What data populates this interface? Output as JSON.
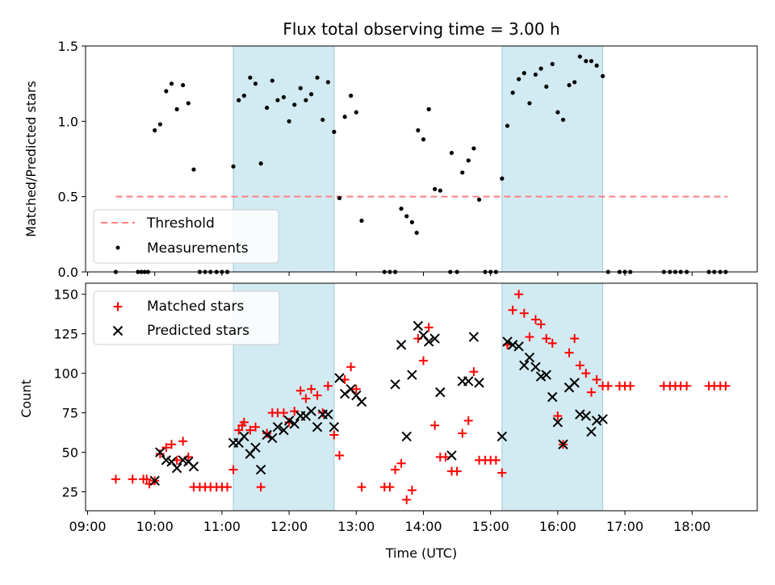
{
  "chart_data": [
    {
      "type": "scatter",
      "title": "Flux total observing time = 3.00 h",
      "xlabel": "",
      "ylabel": "Matched/Predicted stars",
      "xlim": [
        8.97,
        18.97
      ],
      "ylim": [
        0,
        1.5
      ],
      "yticks": [
        0,
        0.5,
        1.0,
        1.5
      ],
      "ytick_labels": [
        "0.0",
        "0.5",
        "1.0",
        "1.5"
      ],
      "shaded_intervals": [
        [
          11.17,
          12.67
        ],
        [
          15.17,
          16.67
        ]
      ],
      "threshold": {
        "value": 0.5,
        "x_start": 9.42,
        "x_end": 18.53,
        "label": "Threshold",
        "color": "#ff7f7f"
      },
      "legend": {
        "position": "lower-left",
        "entries": [
          "Threshold",
          "Measurements"
        ]
      },
      "series": [
        {
          "name": "Measurements",
          "color": "#000000",
          "points": [
            [
              9.42,
              0
            ],
            [
              9.75,
              0
            ],
            [
              9.8,
              0
            ],
            [
              9.85,
              0
            ],
            [
              9.9,
              0
            ],
            [
              10.0,
              0.94
            ],
            [
              10.08,
              0.98
            ],
            [
              10.17,
              1.2
            ],
            [
              10.25,
              1.25
            ],
            [
              10.33,
              1.08
            ],
            [
              10.42,
              1.24
            ],
            [
              10.5,
              1.12
            ],
            [
              10.58,
              0.68
            ],
            [
              10.67,
              0
            ],
            [
              10.75,
              0
            ],
            [
              10.83,
              0
            ],
            [
              10.92,
              0
            ],
            [
              11.0,
              0
            ],
            [
              11.08,
              0
            ],
            [
              11.17,
              0.7
            ],
            [
              11.25,
              1.14
            ],
            [
              11.33,
              1.17
            ],
            [
              11.42,
              1.29
            ],
            [
              11.5,
              1.25
            ],
            [
              11.58,
              0.72
            ],
            [
              11.67,
              1.09
            ],
            [
              11.75,
              1.27
            ],
            [
              11.83,
              1.14
            ],
            [
              11.92,
              1.16
            ],
            [
              12.0,
              1.0
            ],
            [
              12.08,
              1.11
            ],
            [
              12.17,
              1.22
            ],
            [
              12.25,
              1.14
            ],
            [
              12.33,
              1.18
            ],
            [
              12.42,
              1.29
            ],
            [
              12.5,
              1.01
            ],
            [
              12.58,
              1.26
            ],
            [
              12.67,
              0.93
            ],
            [
              12.75,
              0.49
            ],
            [
              12.83,
              1.03
            ],
            [
              12.92,
              1.17
            ],
            [
              13.0,
              1.06
            ],
            [
              13.08,
              0.34
            ],
            [
              13.42,
              0
            ],
            [
              13.5,
              0
            ],
            [
              13.58,
              0
            ],
            [
              13.67,
              0.42
            ],
            [
              13.75,
              0.37
            ],
            [
              13.83,
              0.33
            ],
            [
              13.9,
              0.26
            ],
            [
              13.92,
              0.94
            ],
            [
              14.0,
              0.88
            ],
            [
              14.08,
              1.08
            ],
            [
              14.17,
              0.55
            ],
            [
              14.25,
              0.54
            ],
            [
              14.4,
              0
            ],
            [
              14.42,
              0.79
            ],
            [
              14.5,
              0
            ],
            [
              14.58,
              0.66
            ],
            [
              14.67,
              0.74
            ],
            [
              14.75,
              0.82
            ],
            [
              14.83,
              0.48
            ],
            [
              14.92,
              0
            ],
            [
              15.0,
              0
            ],
            [
              15.08,
              0
            ],
            [
              15.17,
              0.62
            ],
            [
              15.25,
              0.97
            ],
            [
              15.33,
              1.19
            ],
            [
              15.42,
              1.28
            ],
            [
              15.5,
              1.32
            ],
            [
              15.58,
              1.12
            ],
            [
              15.67,
              1.31
            ],
            [
              15.75,
              1.35
            ],
            [
              15.83,
              1.23
            ],
            [
              15.92,
              1.38
            ],
            [
              16.0,
              1.06
            ],
            [
              16.08,
              1.01
            ],
            [
              16.17,
              1.24
            ],
            [
              16.25,
              1.26
            ],
            [
              16.33,
              1.43
            ],
            [
              16.42,
              1.4
            ],
            [
              16.5,
              1.4
            ],
            [
              16.58,
              1.37
            ],
            [
              16.67,
              1.3
            ],
            [
              16.75,
              0
            ],
            [
              16.92,
              0
            ],
            [
              17.0,
              0
            ],
            [
              17.08,
              0
            ],
            [
              17.58,
              0
            ],
            [
              17.67,
              0
            ],
            [
              17.75,
              0
            ],
            [
              17.83,
              0
            ],
            [
              17.92,
              0
            ],
            [
              18.25,
              0
            ],
            [
              18.33,
              0
            ],
            [
              18.42,
              0
            ],
            [
              18.5,
              0
            ]
          ]
        }
      ]
    },
    {
      "type": "scatter",
      "title": "",
      "xlabel": "Time (UTC)",
      "ylabel": "Count",
      "xlim": [
        8.97,
        18.97
      ],
      "ylim": [
        13,
        157
      ],
      "xticks": [
        9,
        10,
        11,
        12,
        13,
        14,
        15,
        16,
        17,
        18
      ],
      "xtick_labels": [
        "09:00",
        "10:00",
        "11:00",
        "12:00",
        "13:00",
        "14:00",
        "15:00",
        "16:00",
        "17:00",
        "18:00"
      ],
      "yticks": [
        25,
        50,
        75,
        100,
        125,
        150
      ],
      "ytick_labels": [
        "25",
        "50",
        "75",
        "100",
        "125",
        "150"
      ],
      "shaded_intervals": [
        [
          11.17,
          12.67
        ],
        [
          15.17,
          16.67
        ]
      ],
      "legend": {
        "position": "top-left",
        "entries": [
          "Matched stars",
          "Predicted stars"
        ]
      },
      "series": [
        {
          "name": "Matched stars",
          "marker": "plus",
          "color": "#ff0000",
          "points": [
            [
              9.42,
              33
            ],
            [
              9.67,
              33
            ],
            [
              9.83,
              33
            ],
            [
              9.88,
              33
            ],
            [
              9.92,
              30
            ],
            [
              10.0,
              32
            ],
            [
              10.08,
              49
            ],
            [
              10.17,
              53
            ],
            [
              10.25,
              55
            ],
            [
              10.33,
              45
            ],
            [
              10.42,
              57
            ],
            [
              10.5,
              47
            ],
            [
              10.58,
              28
            ],
            [
              10.67,
              28
            ],
            [
              10.75,
              28
            ],
            [
              10.83,
              28
            ],
            [
              10.92,
              28
            ],
            [
              11.0,
              28
            ],
            [
              11.08,
              28
            ],
            [
              11.17,
              39
            ],
            [
              11.25,
              64
            ],
            [
              11.3,
              67
            ],
            [
              11.33,
              69
            ],
            [
              11.42,
              64
            ],
            [
              11.5,
              66
            ],
            [
              11.58,
              28
            ],
            [
              11.67,
              62
            ],
            [
              11.75,
              75
            ],
            [
              11.83,
              75
            ],
            [
              11.92,
              75
            ],
            [
              12.0,
              69
            ],
            [
              12.08,
              76
            ],
            [
              12.17,
              89
            ],
            [
              12.25,
              84
            ],
            [
              12.33,
              90
            ],
            [
              12.42,
              86
            ],
            [
              12.5,
              75
            ],
            [
              12.58,
              92
            ],
            [
              12.67,
              61
            ],
            [
              12.75,
              48
            ],
            [
              12.83,
              96
            ],
            [
              12.92,
              104
            ],
            [
              13.0,
              90
            ],
            [
              13.08,
              28
            ],
            [
              13.42,
              28
            ],
            [
              13.5,
              28
            ],
            [
              13.58,
              39
            ],
            [
              13.67,
              43
            ],
            [
              13.75,
              20
            ],
            [
              13.83,
              26
            ],
            [
              13.92,
              122
            ],
            [
              14.0,
              108
            ],
            [
              14.08,
              129
            ],
            [
              14.17,
              67
            ],
            [
              14.25,
              47
            ],
            [
              14.33,
              47
            ],
            [
              14.42,
              38
            ],
            [
              14.5,
              38
            ],
            [
              14.58,
              62
            ],
            [
              14.67,
              70
            ],
            [
              14.75,
              101
            ],
            [
              14.83,
              45
            ],
            [
              14.92,
              45
            ],
            [
              15.0,
              45
            ],
            [
              15.08,
              45
            ],
            [
              15.17,
              37
            ],
            [
              15.25,
              118
            ],
            [
              15.33,
              140
            ],
            [
              15.42,
              150
            ],
            [
              15.5,
              138
            ],
            [
              15.58,
              123
            ],
            [
              15.67,
              134
            ],
            [
              15.75,
              131
            ],
            [
              15.83,
              122
            ],
            [
              15.92,
              119
            ],
            [
              16.0,
              73
            ],
            [
              16.08,
              55
            ],
            [
              16.17,
              113
            ],
            [
              16.25,
              122
            ],
            [
              16.33,
              105
            ],
            [
              16.42,
              100
            ],
            [
              16.5,
              88
            ],
            [
              16.58,
              96
            ],
            [
              16.67,
              92
            ],
            [
              16.75,
              92
            ],
            [
              16.92,
              92
            ],
            [
              17.0,
              92
            ],
            [
              17.08,
              92
            ],
            [
              17.58,
              92
            ],
            [
              17.67,
              92
            ],
            [
              17.75,
              92
            ],
            [
              17.83,
              92
            ],
            [
              17.92,
              92
            ],
            [
              18.25,
              92
            ],
            [
              18.33,
              92
            ],
            [
              18.42,
              92
            ],
            [
              18.5,
              92
            ]
          ]
        },
        {
          "name": "Predicted stars",
          "marker": "x",
          "color": "#000000",
          "points": [
            [
              10.0,
              32
            ],
            [
              10.08,
              50
            ],
            [
              10.17,
              45
            ],
            [
              10.25,
              44
            ],
            [
              10.33,
              40
            ],
            [
              10.42,
              45
            ],
            [
              10.5,
              44
            ],
            [
              10.58,
              41
            ],
            [
              11.17,
              56
            ],
            [
              11.25,
              56
            ],
            [
              11.33,
              60
            ],
            [
              11.42,
              49
            ],
            [
              11.5,
              53
            ],
            [
              11.58,
              39
            ],
            [
              11.67,
              61
            ],
            [
              11.75,
              59
            ],
            [
              11.83,
              66
            ],
            [
              11.92,
              64
            ],
            [
              12.0,
              70
            ],
            [
              12.08,
              68
            ],
            [
              12.17,
              73
            ],
            [
              12.25,
              73
            ],
            [
              12.33,
              76
            ],
            [
              12.42,
              66
            ],
            [
              12.5,
              74
            ],
            [
              12.58,
              74
            ],
            [
              12.67,
              66
            ],
            [
              12.75,
              97
            ],
            [
              12.83,
              87
            ],
            [
              12.92,
              90
            ],
            [
              13.0,
              86
            ],
            [
              13.08,
              82
            ],
            [
              13.58,
              93
            ],
            [
              13.67,
              118
            ],
            [
              13.75,
              60
            ],
            [
              13.83,
              99
            ],
            [
              13.92,
              130
            ],
            [
              14.0,
              124
            ],
            [
              14.08,
              120
            ],
            [
              14.17,
              122
            ],
            [
              14.25,
              88
            ],
            [
              14.42,
              48
            ],
            [
              14.58,
              95
            ],
            [
              14.67,
              95
            ],
            [
              14.75,
              123
            ],
            [
              14.83,
              94
            ],
            [
              15.17,
              60
            ],
            [
              15.25,
              120
            ],
            [
              15.33,
              118
            ],
            [
              15.42,
              117
            ],
            [
              15.5,
              105
            ],
            [
              15.58,
              110
            ],
            [
              15.67,
              104
            ],
            [
              15.75,
              98
            ],
            [
              15.83,
              99
            ],
            [
              15.92,
              85
            ],
            [
              16.0,
              69
            ],
            [
              16.08,
              55
            ],
            [
              16.17,
              91
            ],
            [
              16.25,
              94
            ],
            [
              16.33,
              74
            ],
            [
              16.42,
              73
            ],
            [
              16.5,
              63
            ],
            [
              16.58,
              70
            ],
            [
              16.67,
              71
            ]
          ]
        }
      ]
    }
  ]
}
